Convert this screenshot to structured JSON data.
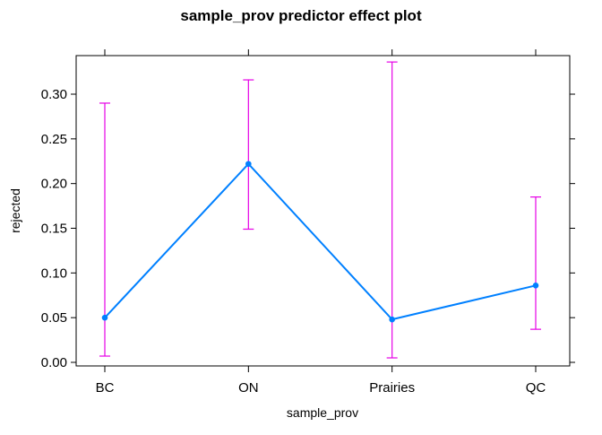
{
  "chart_data": {
    "type": "line",
    "title": "sample_prov predictor effect plot",
    "xlabel": "sample_prov",
    "ylabel": "rejected",
    "categories": [
      "BC",
      "ON",
      "Prairies",
      "QC"
    ],
    "series": [
      {
        "values": [
          0.05,
          0.222,
          0.048,
          0.086
        ],
        "lower": [
          0.007,
          0.149,
          0.005,
          0.037
        ],
        "upper": [
          0.29,
          0.316,
          0.336,
          0.185
        ]
      }
    ],
    "ylim": [
      0.0,
      0.34
    ],
    "yticks": [
      0.0,
      0.05,
      0.1,
      0.15,
      0.2,
      0.25,
      0.3
    ],
    "ytick_labels": [
      "0.00",
      "0.05",
      "0.10",
      "0.15",
      "0.20",
      "0.25",
      "0.30"
    ],
    "grid": false,
    "line_color": "#0080ff",
    "errorbar_color": "#e600e6"
  }
}
